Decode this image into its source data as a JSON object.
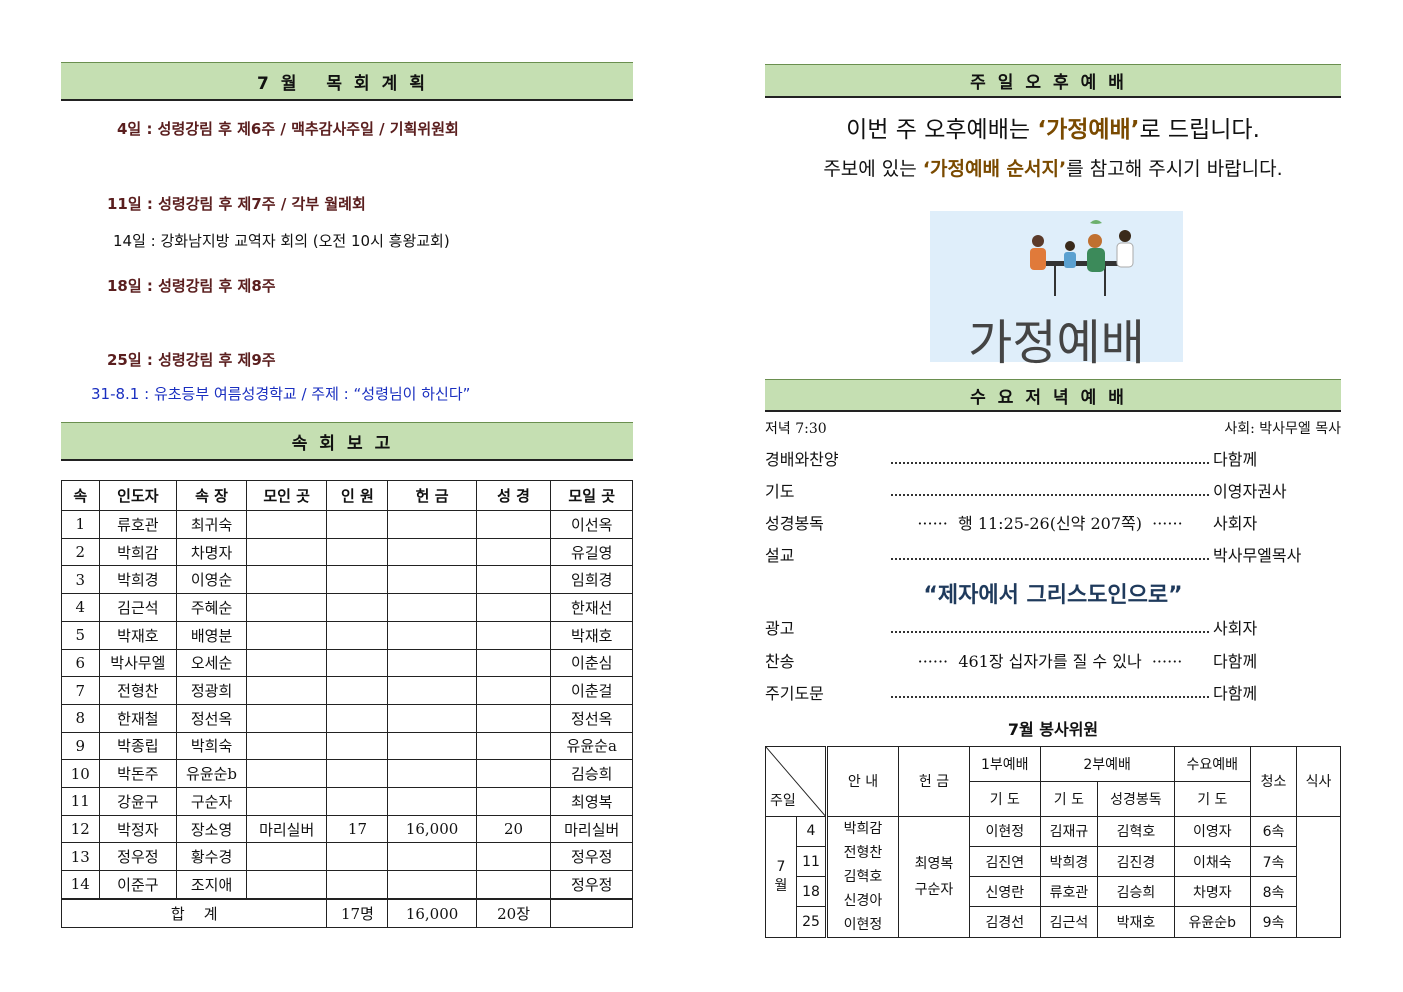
{
  "plan": {
    "title": "7월 목회계획",
    "items": [
      {
        "text": "4일 : 성령강림 후 제6주 / 맥추감사주일 / 기획위원회",
        "style": "b"
      },
      {
        "text": "11일 : 성령강림 후 제7주 / 각부 월례회",
        "style": "b"
      },
      {
        "text": "14일 : 강화남지방 교역자 회의 (오전 10시 흥왕교회)",
        "style": "n"
      },
      {
        "text": "18일 : 성령강림 후 제8주",
        "style": "b"
      },
      {
        "text": "25일 : 성령강림 후 제9주",
        "style": "b"
      },
      {
        "text": "31-8.1 : 유초등부 여름성경학교 / 주제 : “성령님이 하신다”",
        "style": "blue"
      }
    ]
  },
  "report": {
    "title": "속회보고",
    "headers": [
      "속",
      "인도자",
      "속 장",
      "모인 곳",
      "인 원",
      "헌 금",
      "성 경",
      "모일 곳"
    ],
    "rows": [
      [
        "1",
        "류호관",
        "최귀숙",
        "",
        "",
        "",
        "",
        "이선옥"
      ],
      [
        "2",
        "박희감",
        "차명자",
        "",
        "",
        "",
        "",
        "유길영"
      ],
      [
        "3",
        "박희경",
        "이영순",
        "",
        "",
        "",
        "",
        "임희경"
      ],
      [
        "4",
        "김근석",
        "주혜순",
        "",
        "",
        "",
        "",
        "한재선"
      ],
      [
        "5",
        "박재호",
        "배영분",
        "",
        "",
        "",
        "",
        "박재호"
      ],
      [
        "6",
        "박사무엘",
        "오세순",
        "",
        "",
        "",
        "",
        "이춘심"
      ],
      [
        "7",
        "전형찬",
        "정광희",
        "",
        "",
        "",
        "",
        "이춘걸"
      ],
      [
        "8",
        "한재철",
        "정선옥",
        "",
        "",
        "",
        "",
        "정선옥"
      ],
      [
        "9",
        "박종립",
        "박희숙",
        "",
        "",
        "",
        "",
        "유윤순a"
      ],
      [
        "10",
        "박돈주",
        "유윤순b",
        "",
        "",
        "",
        "",
        "김승희"
      ],
      [
        "11",
        "강윤구",
        "구순자",
        "",
        "",
        "",
        "",
        "최영복"
      ],
      [
        "12",
        "박정자",
        "장소영",
        "마리실버",
        "17",
        "16,000",
        "20",
        "마리실버"
      ],
      [
        "13",
        "정우정",
        "황수경",
        "",
        "",
        "",
        "",
        "정우정"
      ],
      [
        "14",
        "이준구",
        "조지애",
        "",
        "",
        "",
        "",
        "정우정"
      ],
      [
        "",
        "",
        "",
        "",
        "",
        "",
        "",
        ""
      ]
    ],
    "total": {
      "label": "합    계",
      "people": "17명",
      "offering": "16,000",
      "bible": "20장"
    }
  },
  "afternoon": {
    "title": "주일오후예배",
    "line1_pre": "이번 주 오후예배는 ",
    "line1_em": "‘가정예배’",
    "line1_post": "로 드립니다.",
    "line2_pre": "주보에 있는 ",
    "line2_em": "‘가정예배 순서지’",
    "line2_post": "를 참고해 주시기 바랍니다.",
    "image_text": "가정예배",
    "accent": "#7a4a00"
  },
  "wednesday": {
    "title": "수요저녁예배",
    "time": "저녁 7:30",
    "host": "사회: 박사무엘 목사",
    "order": [
      {
        "label": "경배와찬양",
        "mid": "",
        "who": "다함께"
      },
      {
        "label": "기도",
        "mid": "",
        "who": "이영자권사"
      },
      {
        "label": "성경봉독",
        "mid": "······  행 11:25-26(신약 207쪽)  ······",
        "who": "사회자"
      },
      {
        "label": "설교",
        "mid": "",
        "who": "박사무엘목사"
      },
      {
        "label": "광고",
        "mid": "",
        "who": "사회자"
      },
      {
        "label": "찬송",
        "mid": "······  461장 십자가를 질 수 있나  ······",
        "who": "다함께"
      },
      {
        "label": "주기도문",
        "mid": "",
        "who": "다함께"
      }
    ],
    "sermon": "“제자에서 그리스도인으로”"
  },
  "service": {
    "title": "7월 봉사위원",
    "h": {
      "sunday": "주일",
      "guide": "안 내",
      "offering": "헌 금",
      "first": "1부예배",
      "second": "2부예배",
      "wed": "수요예배",
      "clean": "청소",
      "meal": "식사",
      "prayer": "기 도",
      "reading": "성경봉독"
    },
    "month": "7\n월",
    "guides": "박희감\n전형찬\n김혁호\n신경아\n이현정",
    "offerers": "최영복\n구순자",
    "rows": [
      [
        "4",
        "이현정",
        "김재규",
        "김혁호",
        "이영자",
        "6속"
      ],
      [
        "11",
        "김진연",
        "박희경",
        "김진경",
        "이채숙",
        "7속"
      ],
      [
        "18",
        "신영란",
        "류호관",
        "김승희",
        "차명자",
        "8속"
      ],
      [
        "25",
        "김경선",
        "김근석",
        "박재호",
        "유윤순b",
        "9속"
      ]
    ]
  }
}
